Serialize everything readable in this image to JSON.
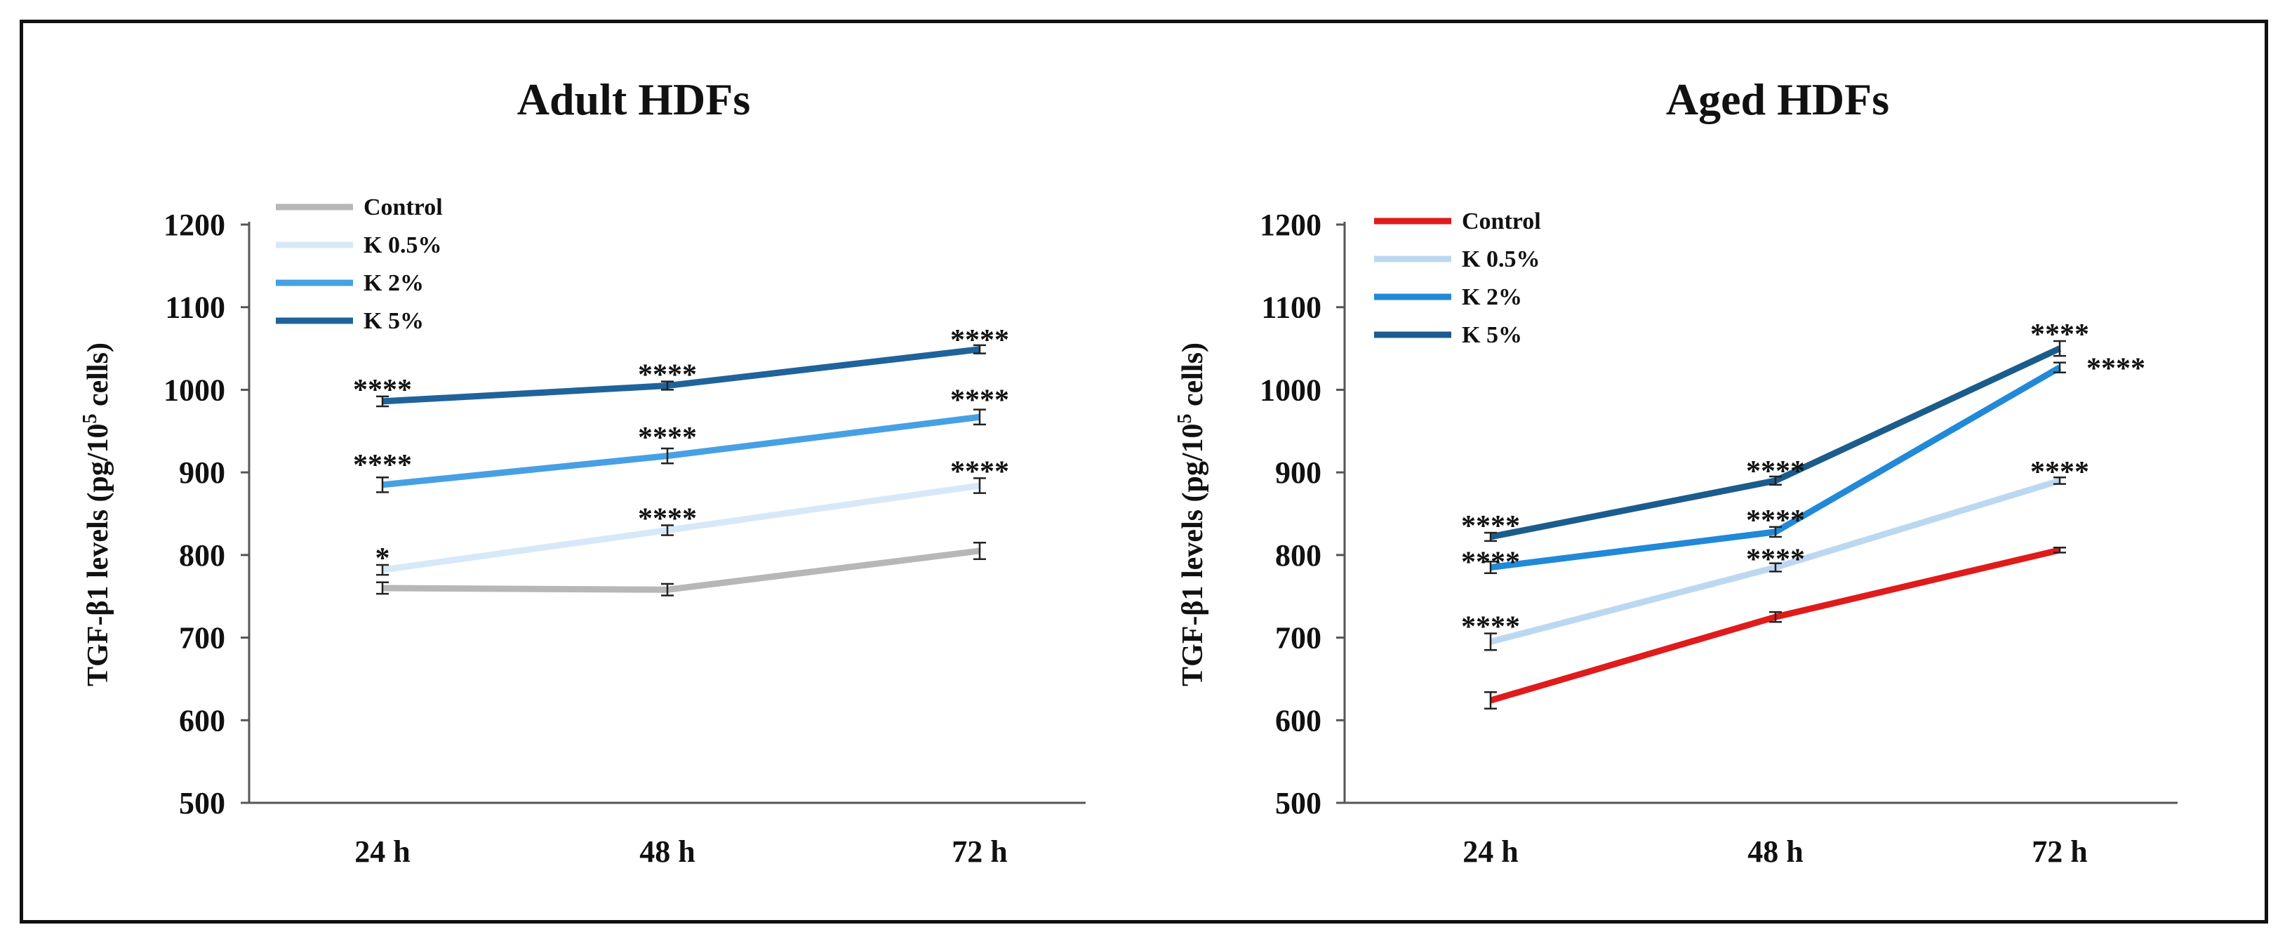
{
  "chart_data": [
    {
      "type": "line",
      "title": "Adult HDFs",
      "ylabel": "TGF-β1 levels  (pg/10⁵ cells)",
      "ylabel_parts": [
        "TGF-β1 levels  (pg/10",
        "5",
        " cells)"
      ],
      "xlabel": "",
      "categories": [
        "24 h",
        "48 h",
        "72 h"
      ],
      "ylim": [
        500,
        1200
      ],
      "yticks": [
        500,
        600,
        700,
        800,
        900,
        1000,
        1100,
        1200
      ],
      "legend": "top-left",
      "grid": false,
      "series": [
        {
          "name": "Control",
          "color": "#b7b7b7",
          "values": [
            760,
            758,
            805
          ],
          "errors": [
            7,
            7,
            10
          ],
          "labels": [
            "",
            "",
            ""
          ]
        },
        {
          "name": "K 0.5%",
          "color": "#d7e8f8",
          "values": [
            782,
            830,
            884
          ],
          "errors": [
            6,
            6,
            9
          ],
          "labels": [
            "*",
            "****",
            "****"
          ]
        },
        {
          "name": "K 2%",
          "color": "#47a0e4",
          "values": [
            885,
            920,
            967
          ],
          "errors": [
            9,
            9,
            9
          ],
          "labels": [
            "****",
            "****",
            "****"
          ]
        },
        {
          "name": "K 5%",
          "color": "#20639b",
          "values": [
            986,
            1005,
            1049
          ],
          "errors": [
            6,
            5,
            5
          ],
          "labels": [
            "****",
            "****",
            "****"
          ]
        }
      ]
    },
    {
      "type": "line",
      "title": "Aged HDFs",
      "ylabel": "TGF-β1 levels  (pg/10⁵ cells)",
      "ylabel_parts": [
        "TGF-β1 levels  (pg/10",
        "5",
        " cells)"
      ],
      "xlabel": "",
      "categories": [
        "24 h",
        "48 h",
        "72 h"
      ],
      "ylim": [
        500,
        1200
      ],
      "yticks": [
        500,
        600,
        700,
        800,
        900,
        1000,
        1100,
        1200
      ],
      "legend": "top-left",
      "grid": false,
      "series": [
        {
          "name": "Control",
          "color": "#e01b1b",
          "values": [
            624,
            725,
            806
          ],
          "errors": [
            10,
            6,
            3
          ],
          "labels": [
            "",
            "",
            ""
          ]
        },
        {
          "name": "K 0.5%",
          "color": "#bcd8f1",
          "values": [
            695,
            785,
            890
          ],
          "errors": [
            10,
            5,
            4
          ],
          "labels": [
            "****",
            "****",
            "****"
          ]
        },
        {
          "name": "K 2%",
          "color": "#2189d7",
          "values": [
            785,
            828,
            1027
          ],
          "errors": [
            7,
            6,
            6
          ],
          "labels": [
            "****",
            "****",
            "****"
          ]
        },
        {
          "name": "K 5%",
          "color": "#1b5c8c",
          "values": [
            822,
            890,
            1050
          ],
          "errors": [
            5,
            5,
            9
          ],
          "labels": [
            "****",
            "****",
            "****"
          ]
        }
      ]
    }
  ]
}
